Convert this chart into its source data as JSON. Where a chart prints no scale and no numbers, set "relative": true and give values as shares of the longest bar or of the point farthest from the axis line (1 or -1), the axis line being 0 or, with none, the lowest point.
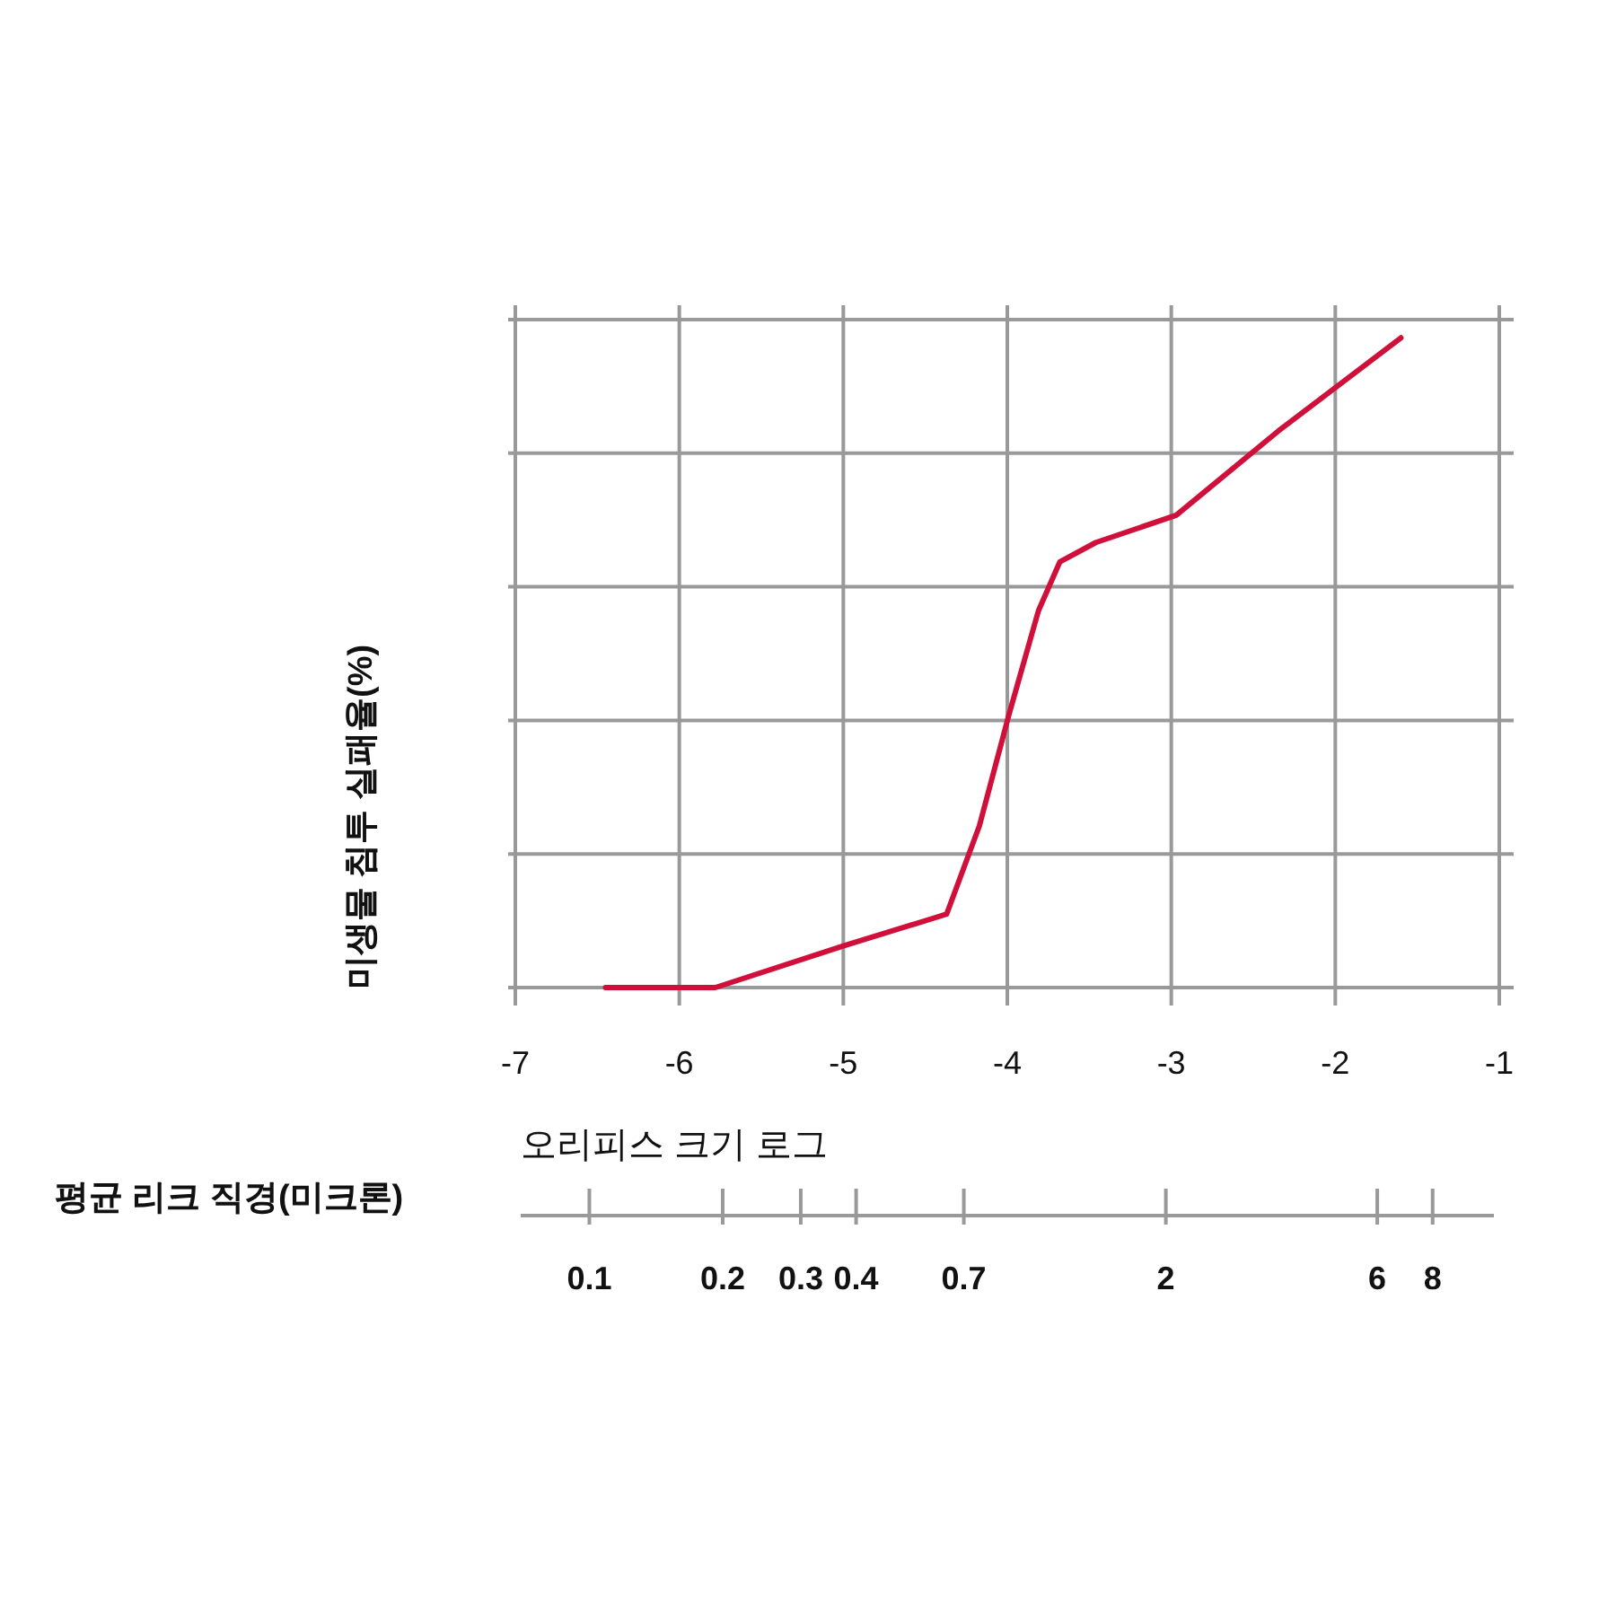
{
  "chart_data": {
    "type": "line",
    "relative": true,
    "ylabel": "미생물 침투 실패율(%)",
    "xlabel": "오리피스 크기 로그",
    "x2label": "평균 리크 직경(미크론)",
    "xlim": [
      -7,
      -1
    ],
    "xticks": [
      -7,
      -6,
      -5,
      -4,
      -3,
      -2,
      -1
    ],
    "log": "x2",
    "x2lim": [
      0.07,
      11
    ],
    "x2ticks": [
      0.1,
      0.2,
      0.3,
      0.4,
      0.7,
      2,
      6,
      8
    ],
    "grid": true,
    "series": [
      {
        "color": "#d0103a",
        "x": [
          -6.45,
          -5.78,
          -5.0,
          -4.37,
          -4.17,
          -3.99,
          -3.81,
          -3.68,
          -3.46,
          -2.97,
          -2.35,
          -1.6
        ],
        "values": [
          0,
          0,
          0.064,
          0.113,
          0.249,
          0.42,
          0.58,
          0.655,
          0.685,
          0.727,
          0.856,
          1
        ]
      }
    ]
  }
}
